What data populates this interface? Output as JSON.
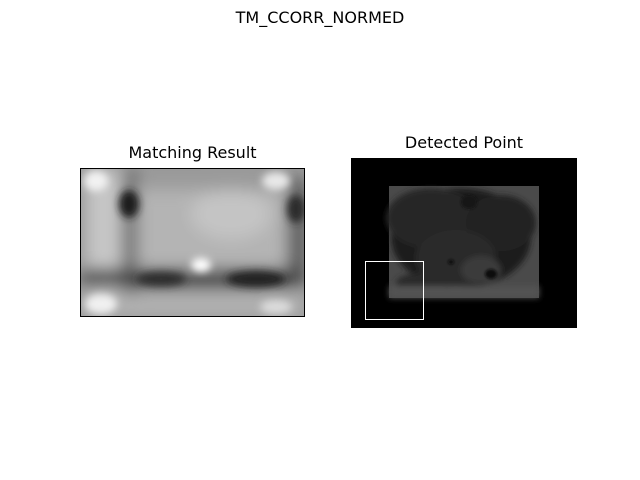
{
  "figure": {
    "suptitle": "TM_CCORR_NORMED",
    "panels": [
      {
        "title": "Matching Result"
      },
      {
        "title": "Detected Point"
      }
    ]
  },
  "colors": {
    "background": "#ffffff",
    "text": "#000000",
    "match_box": "#ffffff"
  }
}
